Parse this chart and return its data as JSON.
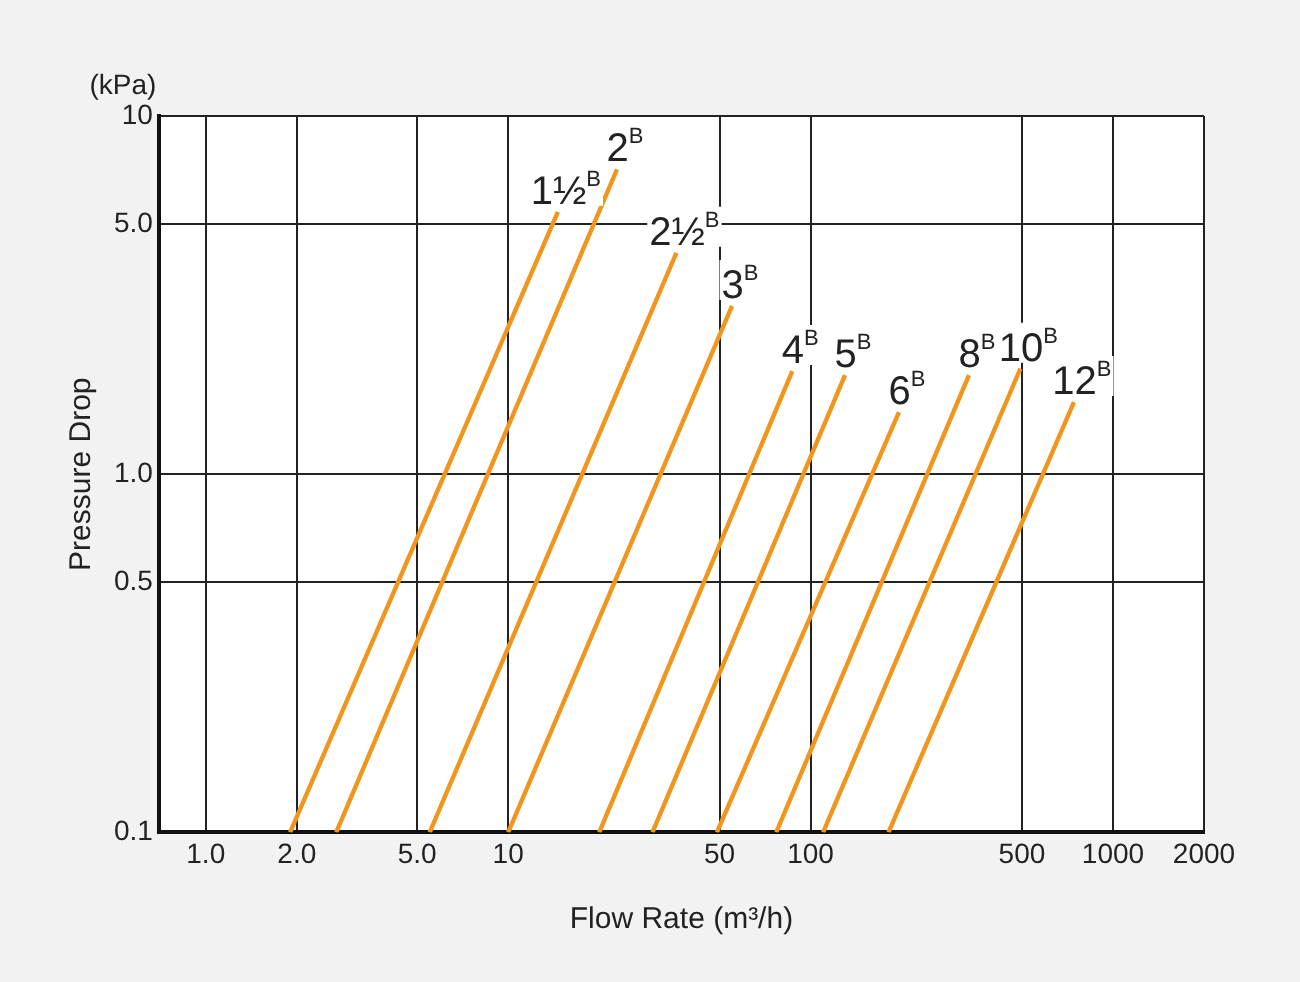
{
  "chart_data": {
    "type": "line",
    "xlabel": "Flow Rate (m³/h)",
    "ylabel": "Pressure Drop",
    "annotations": [
      "(kPa)"
    ],
    "log": "xy",
    "grid": true,
    "legend": false,
    "marker": "none",
    "line_style": "solid",
    "xlim": [
      0.7,
      2000
    ],
    "ylim": [
      0.1,
      10
    ],
    "xticks": [
      {
        "value": 1,
        "label": "1.0"
      },
      {
        "value": 2,
        "label": "2.0"
      },
      {
        "value": 5,
        "label": "5.0"
      },
      10,
      50,
      100,
      500,
      1000,
      2000
    ],
    "yticks": [
      0.1,
      0.5,
      {
        "value": 1,
        "label": "1.0"
      },
      {
        "value": 5,
        "label": "5.0"
      },
      10
    ],
    "series": [
      {
        "name": "1½$^{B}$",
        "color": "#f0961e",
        "x": [
          1.9,
          14.6
        ],
        "values": [
          0.1,
          5.4
        ]
      },
      {
        "name": "2$^{B}$",
        "color": "#f0961e",
        "x": [
          2.7,
          22.9
        ],
        "values": [
          0.1,
          7.1
        ]
      },
      {
        "name": "2½$^{B}$",
        "color": "#f0961e",
        "x": [
          5.5,
          36
        ],
        "values": [
          0.1,
          4.15
        ]
      },
      {
        "name": "3$^{B}$",
        "color": "#f0961e",
        "x": [
          10,
          55
        ],
        "values": [
          0.1,
          2.95
        ]
      },
      {
        "name": "4$^{B}$",
        "color": "#f0961e",
        "x": [
          20,
          87
        ],
        "values": [
          0.1,
          1.94
        ]
      },
      {
        "name": "5$^{B}$",
        "color": "#f0961e",
        "x": [
          30,
          130
        ],
        "values": [
          0.1,
          1.89
        ]
      },
      {
        "name": "6$^{B}$",
        "color": "#f0961e",
        "x": [
          49,
          196
        ],
        "values": [
          0.1,
          1.49
        ]
      },
      {
        "name": "8$^{B}$",
        "color": "#f0961e",
        "x": [
          77,
          334
        ],
        "values": [
          0.1,
          1.89
        ]
      },
      {
        "name": "10$^{B}$",
        "color": "#f0961e",
        "x": [
          110,
          494
        ],
        "values": [
          0.1,
          1.97
        ]
      },
      {
        "name": "12$^{B}$",
        "color": "#f0961e",
        "x": [
          181,
          743
        ],
        "values": [
          0.1,
          1.59
        ]
      }
    ]
  }
}
